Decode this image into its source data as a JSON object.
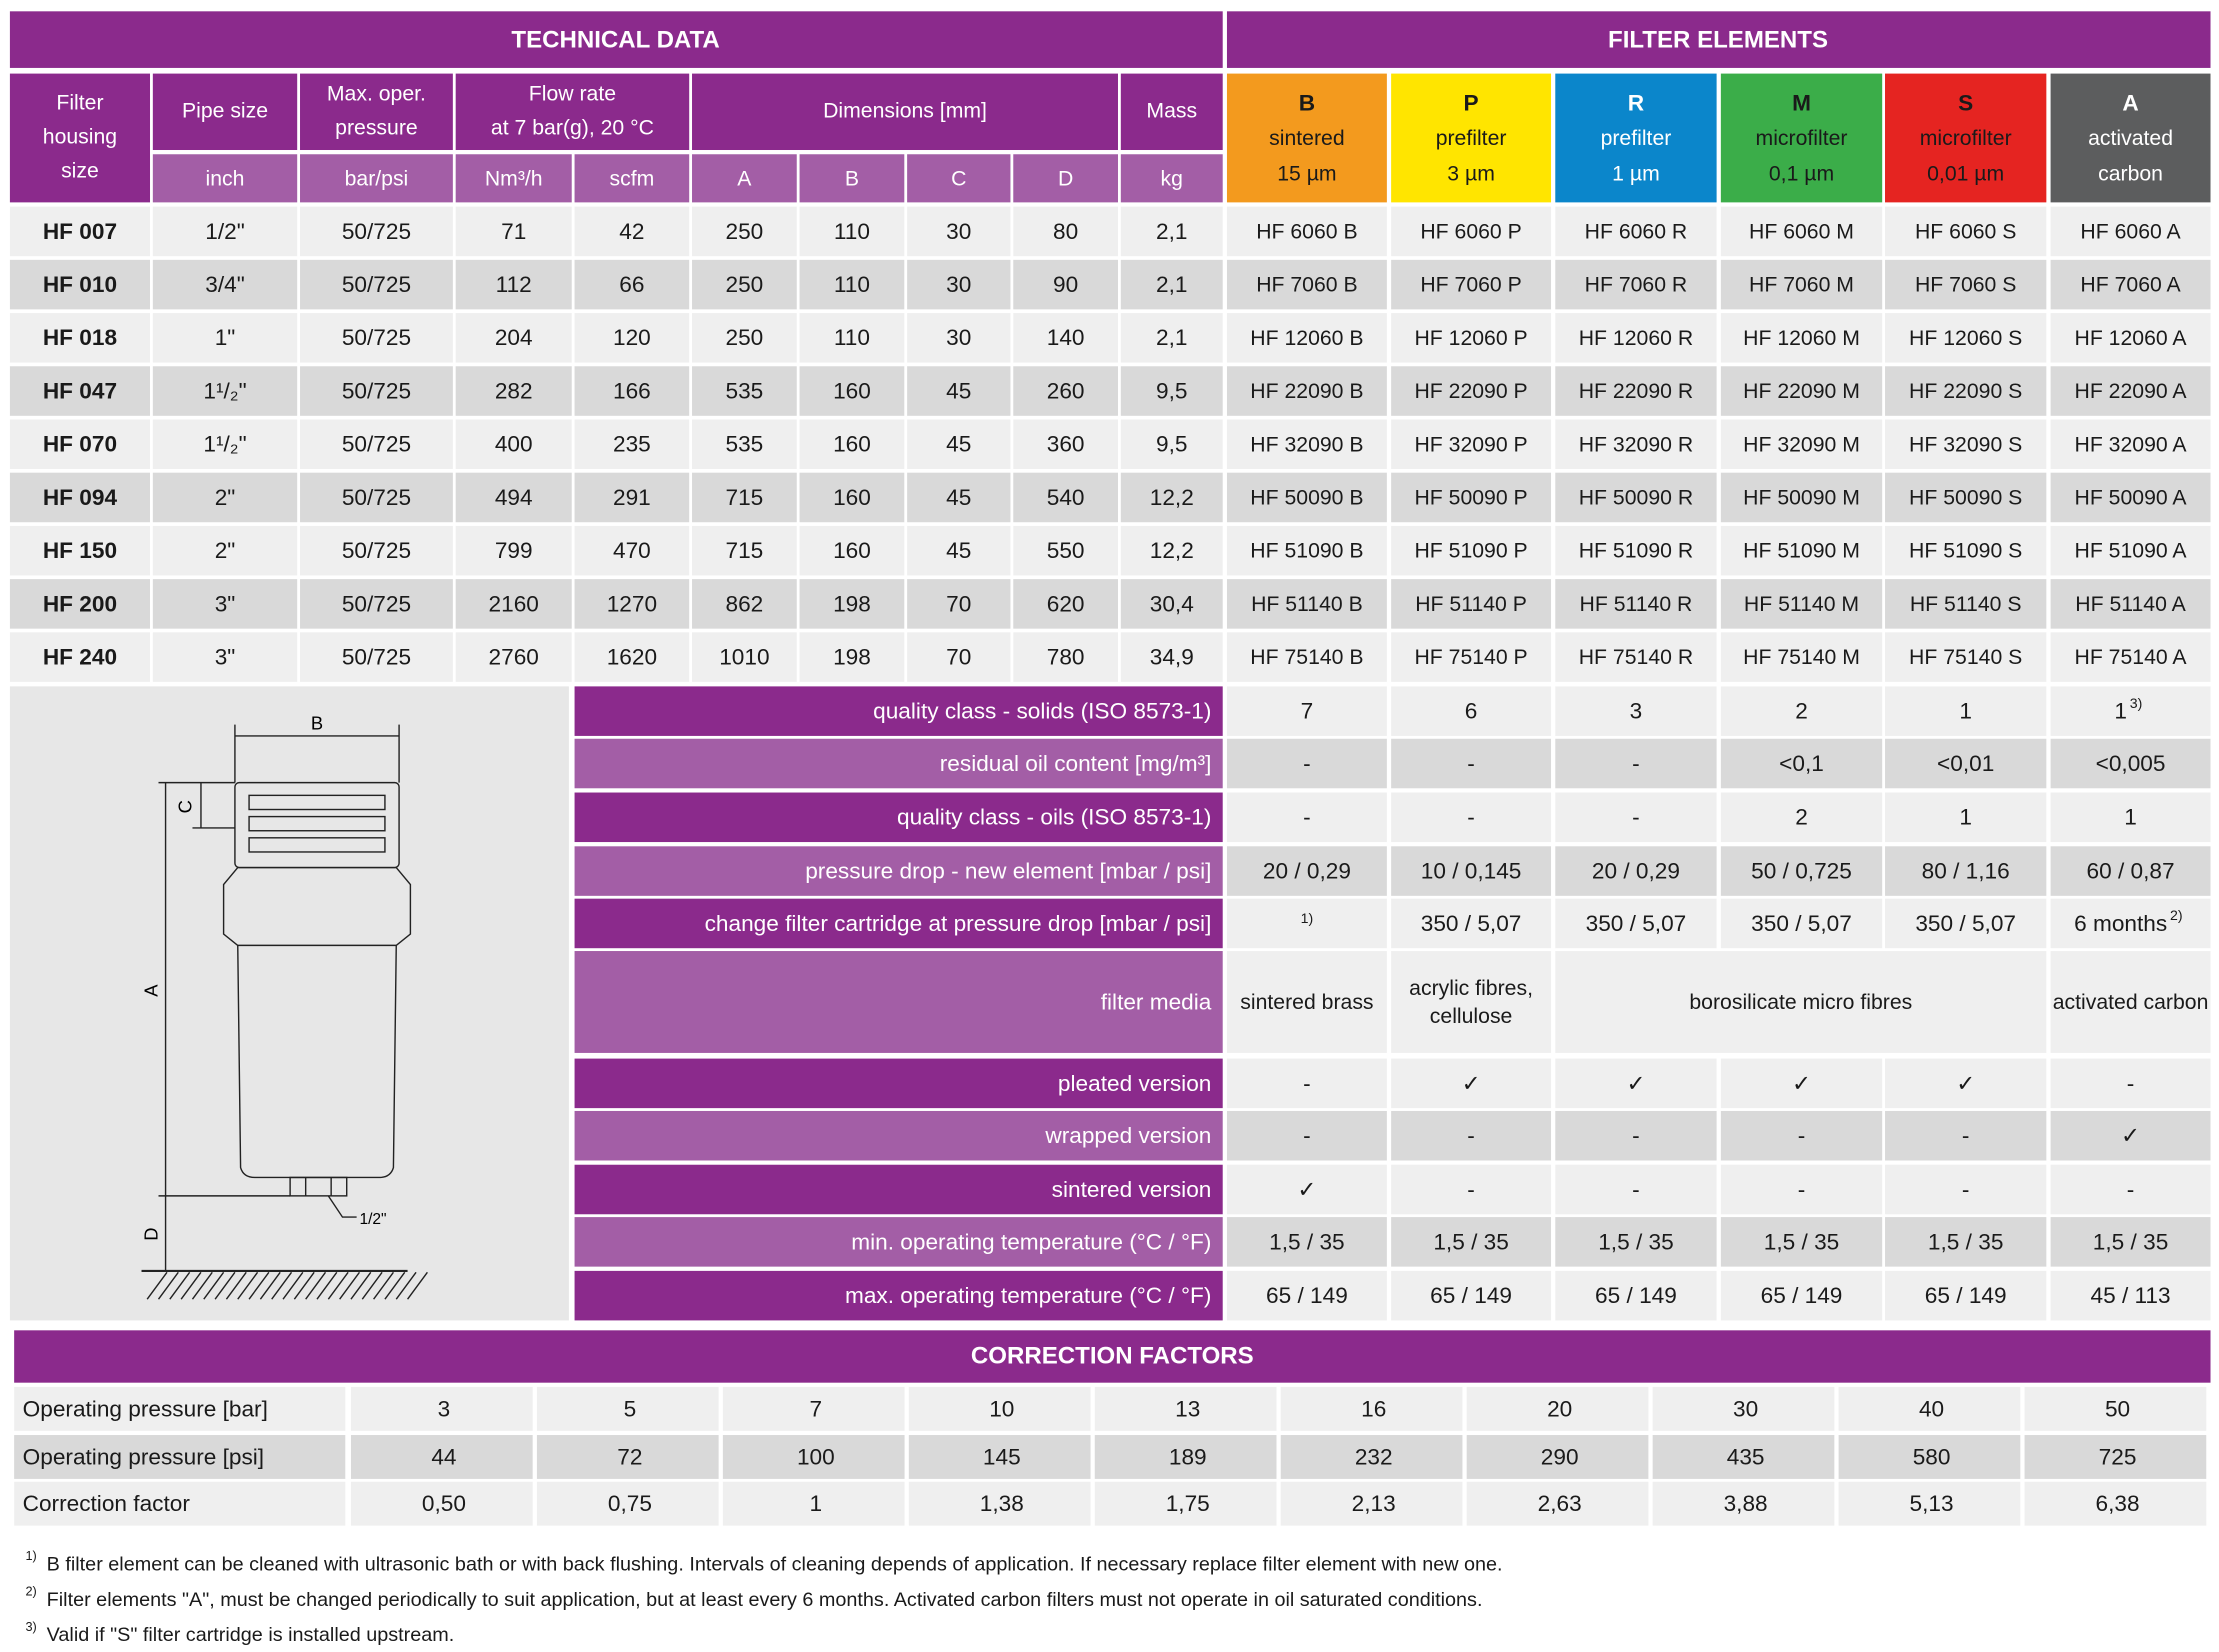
{
  "technical": {
    "title": "TECHNICAL DATA",
    "header_top": [
      [
        "Filter",
        "housing",
        "size"
      ],
      [
        "Pipe size"
      ],
      [
        "Max. oper.",
        "pressure"
      ],
      [
        "Flow rate",
        "at 7 bar(g), 20 °C"
      ],
      [
        "Dimensions [mm]"
      ],
      [
        "Mass"
      ]
    ],
    "units": [
      "inch",
      "bar/psi",
      "Nm³/h",
      "scfm",
      "A",
      "B",
      "C",
      "D",
      "kg"
    ],
    "rows": [
      [
        "HF 007",
        "1/2\"",
        "50/725",
        "71",
        "42",
        "250",
        "110",
        "30",
        "80",
        "2,1"
      ],
      [
        "HF 010",
        "3/4\"",
        "50/725",
        "112",
        "66",
        "250",
        "110",
        "30",
        "90",
        "2,1"
      ],
      [
        "HF 018",
        "1\"",
        "50/725",
        "204",
        "120",
        "250",
        "110",
        "30",
        "140",
        "2,1"
      ],
      [
        "HF 047",
        "1¹/₂\"",
        "50/725",
        "282",
        "166",
        "535",
        "160",
        "45",
        "260",
        "9,5"
      ],
      [
        "HF 070",
        "1¹/₂\"",
        "50/725",
        "400",
        "235",
        "535",
        "160",
        "45",
        "360",
        "9,5"
      ],
      [
        "HF 094",
        "2\"",
        "50/725",
        "494",
        "291",
        "715",
        "160",
        "45",
        "540",
        "12,2"
      ],
      [
        "HF 150",
        "2\"",
        "50/725",
        "799",
        "470",
        "715",
        "160",
        "45",
        "550",
        "12,2"
      ],
      [
        "HF 200",
        "3\"",
        "50/725",
        "2160",
        "1270",
        "862",
        "198",
        "70",
        "620",
        "30,4"
      ],
      [
        "HF 240",
        "3\"",
        "50/725",
        "2760",
        "1620",
        "1010",
        "198",
        "70",
        "780",
        "34,9"
      ]
    ]
  },
  "filter_elements": {
    "title": "FILTER ELEMENTS",
    "elements": [
      {
        "letter": "B",
        "lines": [
          "sintered",
          "15 µm"
        ],
        "color": "#f39a1e",
        "text_color": "#1a1a1a"
      },
      {
        "letter": "P",
        "lines": [
          "prefilter",
          "3 µm"
        ],
        "color": "#ffe500",
        "text_color": "#1a1a1a"
      },
      {
        "letter": "R",
        "lines": [
          "prefilter",
          "1 µm"
        ],
        "color": "#0b86cb",
        "text_color": "#ffffff"
      },
      {
        "letter": "M",
        "lines": [
          "microfilter",
          "0,1 µm"
        ],
        "color": "#3bad49",
        "text_color": "#1a1a1a"
      },
      {
        "letter": "S",
        "lines": [
          "microfilter",
          "0,01 µm"
        ],
        "color": "#e52421",
        "text_color": "#1a1a1a"
      },
      {
        "letter": "A",
        "lines": [
          "activated",
          "carbon"
        ],
        "color": "#5c5d5e",
        "text_color": "#ffffff"
      }
    ],
    "rows": [
      [
        "HF 6060 B",
        "HF 6060 P",
        "HF 6060 R",
        "HF 6060 M",
        "HF 6060 S",
        "HF 6060 A"
      ],
      [
        "HF 7060 B",
        "HF 7060 P",
        "HF 7060 R",
        "HF 7060 M",
        "HF 7060 S",
        "HF 7060 A"
      ],
      [
        "HF 12060 B",
        "HF 12060 P",
        "HF 12060 R",
        "HF 12060 M",
        "HF 12060 S",
        "HF 12060 A"
      ],
      [
        "HF 22090 B",
        "HF 22090 P",
        "HF 22090 R",
        "HF 22090 M",
        "HF 22090 S",
        "HF 22090 A"
      ],
      [
        "HF 32090 B",
        "HF 32090 P",
        "HF 32090 R",
        "HF 32090 M",
        "HF 32090 S",
        "HF 32090 A"
      ],
      [
        "HF 50090 B",
        "HF 50090 P",
        "HF 50090 R",
        "HF 50090 M",
        "HF 50090 S",
        "HF 50090 A"
      ],
      [
        "HF 51090 B",
        "HF 51090 P",
        "HF 51090 R",
        "HF 51090 M",
        "HF 51090 S",
        "HF 51090 A"
      ],
      [
        "HF 51140 B",
        "HF 51140 P",
        "HF 51140 R",
        "HF 51140 M",
        "HF 51140 S",
        "HF 51140 A"
      ],
      [
        "HF 75140 B",
        "HF 75140 P",
        "HF 75140 R",
        "HF 75140 M",
        "HF 75140 S",
        "HF 75140 A"
      ]
    ],
    "properties": [
      {
        "label": "quality class - solids (ISO 8573-1)",
        "values": [
          {
            "text": "7"
          },
          {
            "text": "6"
          },
          {
            "text": "3"
          },
          {
            "text": "2"
          },
          {
            "text": "1"
          },
          {
            "text": "1",
            "note": "3)"
          }
        ]
      },
      {
        "label": "residual oil content [mg/m³]",
        "values": [
          {
            "text": "-"
          },
          {
            "text": "-"
          },
          {
            "text": "-"
          },
          {
            "text": "<0,1"
          },
          {
            "text": "<0,01"
          },
          {
            "text": "<0,005"
          }
        ]
      },
      {
        "label": "quality class - oils (ISO 8573-1)",
        "values": [
          {
            "text": "-"
          },
          {
            "text": "-"
          },
          {
            "text": "-"
          },
          {
            "text": "2"
          },
          {
            "text": "1"
          },
          {
            "text": "1"
          }
        ]
      },
      {
        "label": "pressure drop - new element [mbar / psi]",
        "values": [
          {
            "text": "20 / 0,29"
          },
          {
            "text": "10 / 0,145"
          },
          {
            "text": "20 / 0,29"
          },
          {
            "text": "50 / 0,725"
          },
          {
            "text": "80 / 1,16"
          },
          {
            "text": "60 / 0,87"
          }
        ]
      },
      {
        "label": "change filter cartridge at pressure drop [mbar / psi]",
        "values": [
          {
            "note": "1)"
          },
          {
            "text": "350 / 5,07"
          },
          {
            "text": "350 / 5,07"
          },
          {
            "text": "350 / 5,07"
          },
          {
            "text": "350 / 5,07"
          },
          {
            "text": "6 months",
            "note": "2)"
          }
        ]
      },
      {
        "label": "filter media",
        "media": [
          [
            "sintered brass"
          ],
          [
            "acrylic fibres,",
            "cellulose"
          ],
          [
            "borosilicate micro fibres"
          ],
          [
            "activated carbon"
          ]
        ]
      },
      {
        "label": "pleated version",
        "values": [
          {
            "text": "-"
          },
          {
            "text": "✓"
          },
          {
            "text": "✓"
          },
          {
            "text": "✓"
          },
          {
            "text": "✓"
          },
          {
            "text": "-"
          }
        ]
      },
      {
        "label": "wrapped version",
        "values": [
          {
            "text": "-"
          },
          {
            "text": "-"
          },
          {
            "text": "-"
          },
          {
            "text": "-"
          },
          {
            "text": "-"
          },
          {
            "text": "✓"
          }
        ]
      },
      {
        "label": "sintered version",
        "values": [
          {
            "text": "✓"
          },
          {
            "text": "-"
          },
          {
            "text": "-"
          },
          {
            "text": "-"
          },
          {
            "text": "-"
          },
          {
            "text": "-"
          }
        ]
      },
      {
        "label": "min. operating temperature  (°C / °F)",
        "values": [
          {
            "text": "1,5 / 35"
          },
          {
            "text": "1,5 / 35"
          },
          {
            "text": "1,5 / 35"
          },
          {
            "text": "1,5 / 35"
          },
          {
            "text": "1,5 / 35"
          },
          {
            "text": "1,5 / 35"
          }
        ]
      },
      {
        "label": "max. operating temperature  (°C / °F)",
        "values": [
          {
            "text": "65 / 149"
          },
          {
            "text": "65 / 149"
          },
          {
            "text": "65 / 149"
          },
          {
            "text": "65 / 149"
          },
          {
            "text": "65 / 149"
          },
          {
            "text": "45 / 113"
          }
        ]
      }
    ]
  },
  "diagram": {
    "labels": {
      "b": "B",
      "c": "C",
      "a": "A",
      "d": "D",
      "pipe": "1/2\""
    }
  },
  "correction": {
    "title": "CORRECTION FACTORS",
    "rows": [
      {
        "label": "Operating pressure [bar]",
        "values": [
          "3",
          "5",
          "7",
          "10",
          "13",
          "16",
          "20",
          "30",
          "40",
          "50"
        ]
      },
      {
        "label": "Operating pressure [psi]",
        "values": [
          "44",
          "72",
          "100",
          "145",
          "189",
          "232",
          "290",
          "435",
          "580",
          "725"
        ]
      },
      {
        "label": "Correction factor",
        "values": [
          "0,50",
          "0,75",
          "1",
          "1,38",
          "1,75",
          "2,13",
          "2,63",
          "3,88",
          "5,13",
          "6,38"
        ]
      }
    ]
  },
  "footnotes": [
    {
      "mark": "1)",
      "text": "B filter element can be cleaned with ultrasonic bath or with back flushing. Intervals of cleaning depends of application. If necessary replace filter element with new one."
    },
    {
      "mark": "2)",
      "text": "Filter elements \"A\", must be changed periodically to suit application, but at least every 6 months. Activated carbon filters must not operate in oil saturated conditions."
    },
    {
      "mark": "3)",
      "text": "Valid if \"S\" filter cartridge is installed upstream."
    }
  ]
}
